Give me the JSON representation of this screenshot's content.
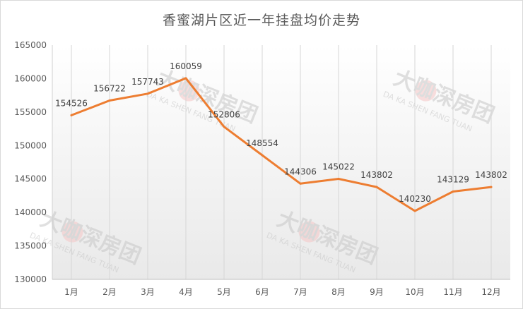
{
  "chart_data": {
    "type": "line",
    "title": "香蜜湖片区近一年挂盘均价走势",
    "categories": [
      "1月",
      "2月",
      "3月",
      "4月",
      "5月",
      "6月",
      "7月",
      "8月",
      "9月",
      "10月",
      "11月",
      "12月"
    ],
    "values": [
      154526,
      156722,
      157743,
      160059,
      152806,
      148554,
      144306,
      145022,
      143802,
      140230,
      143129,
      143802
    ],
    "ylim": [
      130000,
      165000
    ],
    "yticks": [
      130000,
      135000,
      140000,
      145000,
      150000,
      155000,
      160000,
      165000
    ],
    "xlabel": "",
    "ylabel": "",
    "grid": "vertical lines at categories",
    "line_color": "#ED7D31",
    "data_labels": true
  },
  "watermark": {
    "brand": "大咖深房团",
    "sub": "DA KA SHEN FANG TUAN"
  }
}
